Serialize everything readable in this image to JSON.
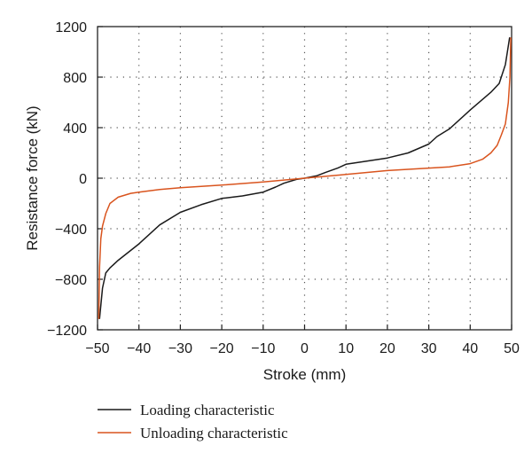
{
  "chart_data": {
    "type": "line",
    "title": "",
    "xlabel": "Stroke (mm)",
    "ylabel": "Resistance force (kN)",
    "xlim": [
      -50,
      50
    ],
    "ylim": [
      -1200,
      1200
    ],
    "xticks": [
      -50,
      -40,
      -30,
      -20,
      -10,
      0,
      10,
      20,
      30,
      40,
      50
    ],
    "yticks": [
      -1200,
      -800,
      -400,
      0,
      400,
      800,
      1200
    ],
    "xtick_labels": [
      "−50",
      "−40",
      "−30",
      "−20",
      "−10",
      "0",
      "10",
      "20",
      "30",
      "40",
      "50"
    ],
    "ytick_labels": [
      "−1200",
      "−800",
      "−400",
      "0",
      "400",
      "800",
      "1200"
    ],
    "grid": true,
    "legend_position": "bottom",
    "series": [
      {
        "name": "Loading characteristic",
        "color": "#1a1a1a",
        "x": [
          -49.5,
          -48.8,
          -48.0,
          -47.0,
          -45.0,
          -40.0,
          -35.0,
          -30.0,
          -25.0,
          -20.0,
          -15.0,
          -10.0,
          -7.0,
          -5.0,
          -2.0,
          0.0,
          3.0,
          5.0,
          8.0,
          10.0,
          15.0,
          20.0,
          25.0,
          30.0,
          32.0,
          35.0,
          40.0,
          45.0,
          47.0,
          48.5,
          49.5
        ],
        "y": [
          -1110,
          -870,
          -750,
          -710,
          -650,
          -520,
          -370,
          -270,
          -210,
          -160,
          -140,
          -110,
          -70,
          -40,
          -10,
          0,
          20,
          45,
          80,
          110,
          135,
          160,
          200,
          270,
          330,
          390,
          540,
          680,
          750,
          900,
          1110
        ]
      },
      {
        "name": "Unloading characteristic",
        "color": "#d9541e",
        "x": [
          -49.7,
          -49.5,
          -49.2,
          -48.8,
          -48.0,
          -47.0,
          -45.0,
          -42.0,
          -40.0,
          -35.0,
          -30.0,
          -20.0,
          -10.0,
          -5.0,
          0.0,
          5.0,
          10.0,
          20.0,
          30.0,
          35.0,
          40.0,
          43.0,
          45.0,
          46.5,
          47.5,
          48.5,
          49.2,
          49.6,
          49.8
        ],
        "y": [
          -1110,
          -700,
          -480,
          -380,
          -280,
          -200,
          -150,
          -120,
          -110,
          -90,
          -75,
          -55,
          -30,
          -15,
          0,
          15,
          30,
          60,
          80,
          90,
          115,
          150,
          200,
          260,
          340,
          430,
          600,
          800,
          1110
        ]
      }
    ]
  }
}
